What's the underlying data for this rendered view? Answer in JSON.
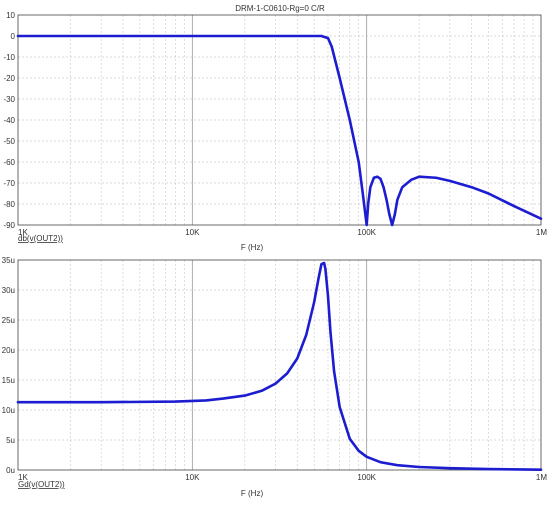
{
  "chart_data": [
    {
      "type": "line",
      "title": "DRM-1-C0610-Rg=0 C/R",
      "ylabel": "db(v(OUT2))",
      "xlabel": "F (Hz)",
      "x_scale": "log",
      "xlim": [
        1000,
        1000000
      ],
      "ylim": [
        -90,
        10
      ],
      "grid": true,
      "x_tick_labels": [
        "1K",
        "10K",
        "100K",
        "1M"
      ],
      "y_tick_labels": [
        "10",
        "0",
        "-10",
        "-20",
        "-30",
        "-40",
        "-50",
        "-60",
        "-70",
        "-80",
        "-90"
      ],
      "series": [
        {
          "color": "#1c1cd0",
          "x": [
            1000,
            5000,
            20000,
            40000,
            50000,
            55000,
            60000,
            63000,
            70000,
            80000,
            90000,
            95000,
            100000,
            102000,
            105000,
            110000,
            115000,
            120000,
            125000,
            130000,
            135000,
            140000,
            145000,
            150000,
            160000,
            180000,
            200000,
            250000,
            300000,
            400000,
            500000,
            700000,
            1000000
          ],
          "values": [
            0,
            0,
            0,
            0,
            0,
            0,
            -1,
            -5,
            -20,
            -40,
            -60,
            -75,
            -90,
            -80,
            -72,
            -67.5,
            -67,
            -68,
            -72,
            -78,
            -85,
            -90,
            -85,
            -78,
            -72,
            -68.5,
            -67,
            -67.5,
            -69,
            -72,
            -75,
            -81,
            -87
          ]
        }
      ]
    },
    {
      "type": "line",
      "ylabel": "Gd(v(OUT2))",
      "xlabel": "F (Hz)",
      "x_scale": "log",
      "xlim": [
        1000,
        1000000
      ],
      "ylim": [
        0,
        35
      ],
      "grid": true,
      "x_tick_labels": [
        "1K",
        "10K",
        "100K",
        "1M"
      ],
      "y_tick_labels": [
        "35u",
        "30u",
        "25u",
        "20u",
        "15u",
        "10u",
        "5u",
        "0u"
      ],
      "series": [
        {
          "color": "#1c1cd0",
          "x": [
            1000,
            3000,
            8000,
            12000,
            15000,
            20000,
            25000,
            30000,
            35000,
            40000,
            45000,
            50000,
            53000,
            55000,
            57000,
            58000,
            60000,
            62000,
            65000,
            70000,
            80000,
            90000,
            100000,
            120000,
            150000,
            200000,
            300000,
            500000,
            1000000
          ],
          "values": [
            11.3,
            11.3,
            11.4,
            11.6,
            11.9,
            12.4,
            13.2,
            14.4,
            16.1,
            18.6,
            22.5,
            28,
            32,
            34.3,
            34.5,
            33.5,
            29,
            23,
            16.5,
            10.5,
            5.2,
            3.2,
            2.2,
            1.3,
            0.8,
            0.5,
            0.3,
            0.15,
            0.05
          ]
        }
      ]
    }
  ]
}
